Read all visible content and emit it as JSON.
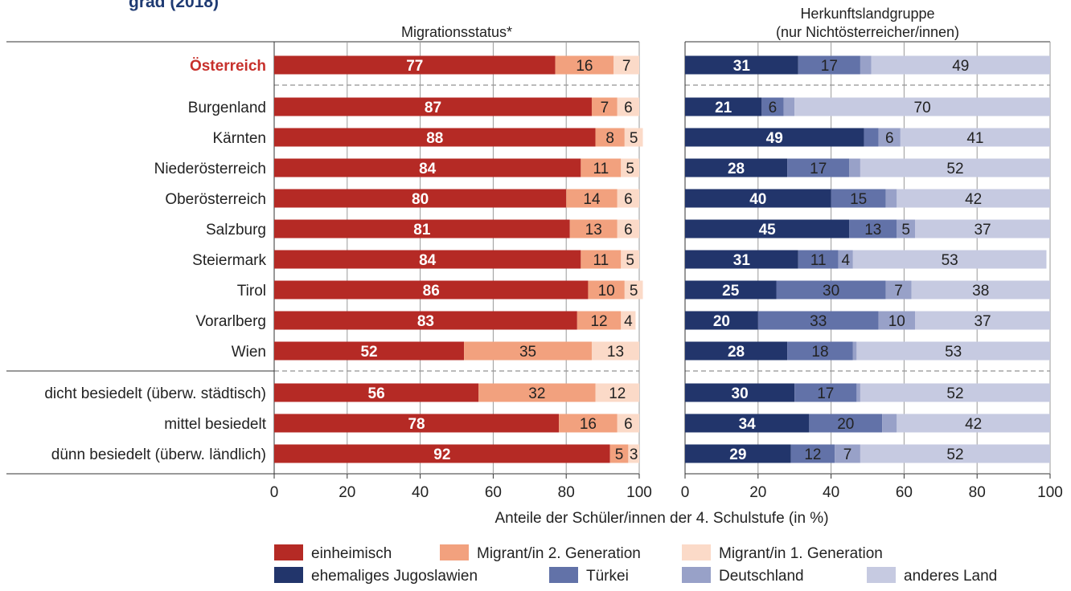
{
  "header": {
    "partial_title": "grad (2018)"
  },
  "chart_data": [
    {
      "type": "bar",
      "stacked": true,
      "orientation": "horizontal",
      "title": "Migrationsstatus*",
      "xlabel": "Anteile der Schüler/innen der 4. Schulstufe (in %)",
      "xlim": [
        0,
        100
      ],
      "xticks": [
        "0",
        "20",
        "40",
        "60",
        "80",
        "100"
      ],
      "grid": true,
      "categories": [
        "Österreich",
        "Burgenland",
        "Kärnten",
        "Niederösterreich",
        "Oberösterreich",
        "Salzburg",
        "Steiermark",
        "Tirol",
        "Vorarlberg",
        "Wien",
        "dicht besiedelt (überw. städtisch)",
        "mittel besiedelt",
        "dünn besiedelt (überw. ländlich)"
      ],
      "series": [
        {
          "name": "einheimisch",
          "color": "#b52a25",
          "values": [
            77,
            87,
            88,
            84,
            80,
            81,
            84,
            86,
            83,
            52,
            56,
            78,
            92
          ]
        },
        {
          "name": "Migrant/in 2. Generation",
          "color": "#f2a17e",
          "values": [
            16,
            7,
            8,
            11,
            14,
            13,
            11,
            10,
            12,
            35,
            32,
            16,
            5
          ]
        },
        {
          "name": "Migrant/in 1. Generation",
          "color": "#fbdac8",
          "values": [
            7,
            6,
            5,
            5,
            6,
            6,
            5,
            5,
            4,
            13,
            12,
            6,
            3
          ]
        }
      ]
    },
    {
      "type": "bar",
      "stacked": true,
      "orientation": "horizontal",
      "title": [
        "Herkunftslandgruppe",
        "(nur Nichtösterreicher/innen)"
      ],
      "xlim": [
        0,
        100
      ],
      "xticks": [
        "0",
        "20",
        "40",
        "60",
        "80",
        "100"
      ],
      "grid": true,
      "categories": [
        "Österreich",
        "Burgenland",
        "Kärnten",
        "Niederösterreich",
        "Oberösterreich",
        "Salzburg",
        "Steiermark",
        "Tirol",
        "Vorarlberg",
        "Wien",
        "dicht besiedelt (überw. städtisch)",
        "mittel besiedelt",
        "dünn besiedelt (überw. ländlich)"
      ],
      "series": [
        {
          "name": "ehemaliges Jugoslawien",
          "color": "#22356b",
          "values": [
            31,
            21,
            49,
            28,
            40,
            45,
            31,
            25,
            20,
            28,
            30,
            34,
            29
          ]
        },
        {
          "name": "Türkei",
          "color": "#6272a8",
          "values": [
            17,
            6,
            4,
            17,
            15,
            13,
            11,
            30,
            33,
            18,
            17,
            20,
            12
          ]
        },
        {
          "name": "Deutschland",
          "color": "#98a1c8",
          "values": [
            3,
            3,
            6,
            3,
            3,
            5,
            4,
            7,
            10,
            1,
            1,
            4,
            7
          ]
        },
        {
          "name": "anderes Land",
          "color": "#c6cae1",
          "values": [
            49,
            70,
            41,
            52,
            42,
            37,
            53,
            38,
            37,
            53,
            52,
            42,
            52
          ]
        }
      ],
      "value_labels": [
        [
          "31",
          "17",
          "",
          "49"
        ],
        [
          "21",
          "6",
          "",
          "70"
        ],
        [
          "49",
          "",
          "6",
          "41"
        ],
        [
          "28",
          "17",
          "",
          "52"
        ],
        [
          "40",
          "15",
          "",
          "42"
        ],
        [
          "45",
          "13",
          "5",
          "37"
        ],
        [
          "31",
          "11",
          "4",
          "53"
        ],
        [
          "25",
          "30",
          "7",
          "38"
        ],
        [
          "20",
          "33",
          "10",
          "37"
        ],
        [
          "28",
          "18",
          "",
          "53"
        ],
        [
          "30",
          "17",
          "",
          "52"
        ],
        [
          "34",
          "20",
          "",
          "42"
        ],
        [
          "29",
          "12",
          "7",
          "52"
        ]
      ]
    }
  ],
  "legend": {
    "items": [
      {
        "label": "einheimisch",
        "color": "#b52a25"
      },
      {
        "label": "Migrant/in 2. Generation",
        "color": "#f2a17e"
      },
      {
        "label": "Migrant/in 1. Generation",
        "color": "#fbdac8"
      },
      {
        "label": "ehemaliges Jugoslawien",
        "color": "#22356b"
      },
      {
        "label": "Türkei",
        "color": "#6272a8"
      },
      {
        "label": "Deutschland",
        "color": "#98a1c8"
      },
      {
        "label": "anderes Land",
        "color": "#c6cae1"
      }
    ]
  },
  "colors": {
    "title_blue": "#1f3b73",
    "highlight_red": "#c7302b",
    "grid": "#9a9a9a"
  }
}
